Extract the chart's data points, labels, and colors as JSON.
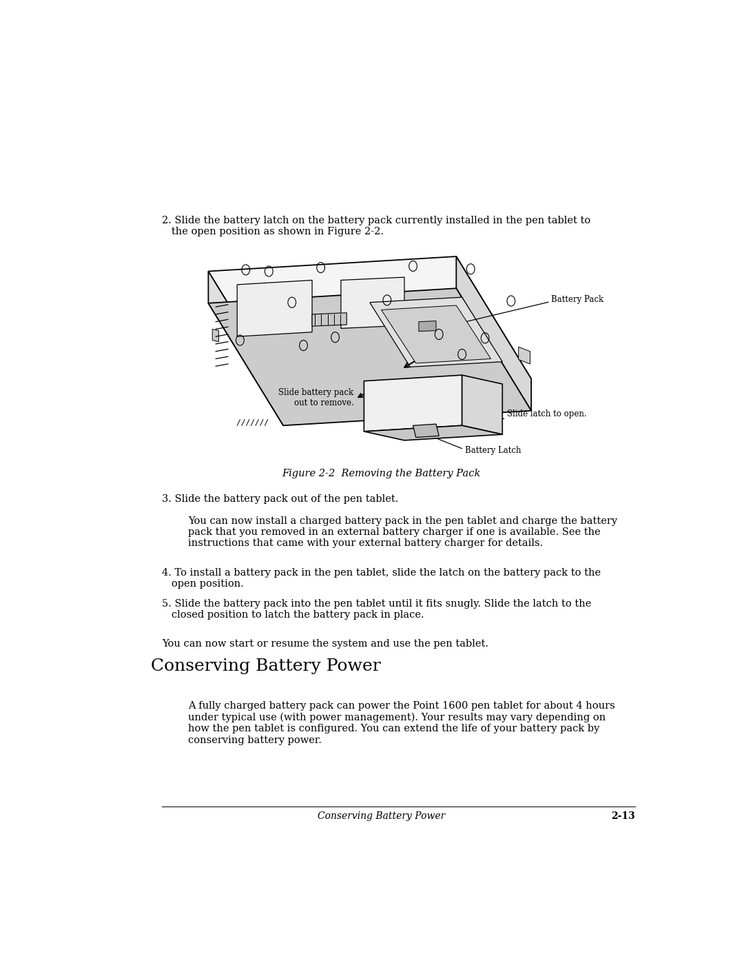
{
  "bg_color": "#ffffff",
  "text_color": "#000000",
  "page_width": 10.8,
  "page_height": 13.97,
  "step2_text": "2. Slide the battery latch on the battery pack currently installed in the pen tablet to\n   the open position as shown in Figure 2-2.",
  "step3_text": "3. Slide the battery pack out of the pen tablet.",
  "step3_sub_text": "You can now install a charged battery pack in the pen tablet and charge the battery\npack that you removed in an external battery charger if one is available. See the\ninstructions that came with your external battery charger for details.",
  "step4_text": "4. To install a battery pack in the pen tablet, slide the latch on the battery pack to the\n   open position.",
  "step5_text": "5. Slide the battery pack into the pen tablet until it fits snugly. Slide the latch to the\n   closed position to latch the battery pack in place.",
  "resume_text": "You can now start or resume the system and use the pen tablet.",
  "section_title": "Conserving Battery Power",
  "section_body": "A fully charged battery pack can power the Point 1600 pen tablet for about 4 hours\nunder typical use (with power management). Your results may vary depending on\nhow the pen tablet is configured. You can extend the life of your battery pack by\nconserving battery power.",
  "figure_caption": "Figure 2-2  Removing the Battery Pack",
  "footer_left": "Conserving Battery Power",
  "footer_right": "2-13",
  "label_battery_pack": "Battery Pack",
  "label_slide_battery": "Slide battery pack\nout to remove.",
  "label_slide_latch": "Slide latch to open.",
  "label_battery_latch": "Battery Latch"
}
